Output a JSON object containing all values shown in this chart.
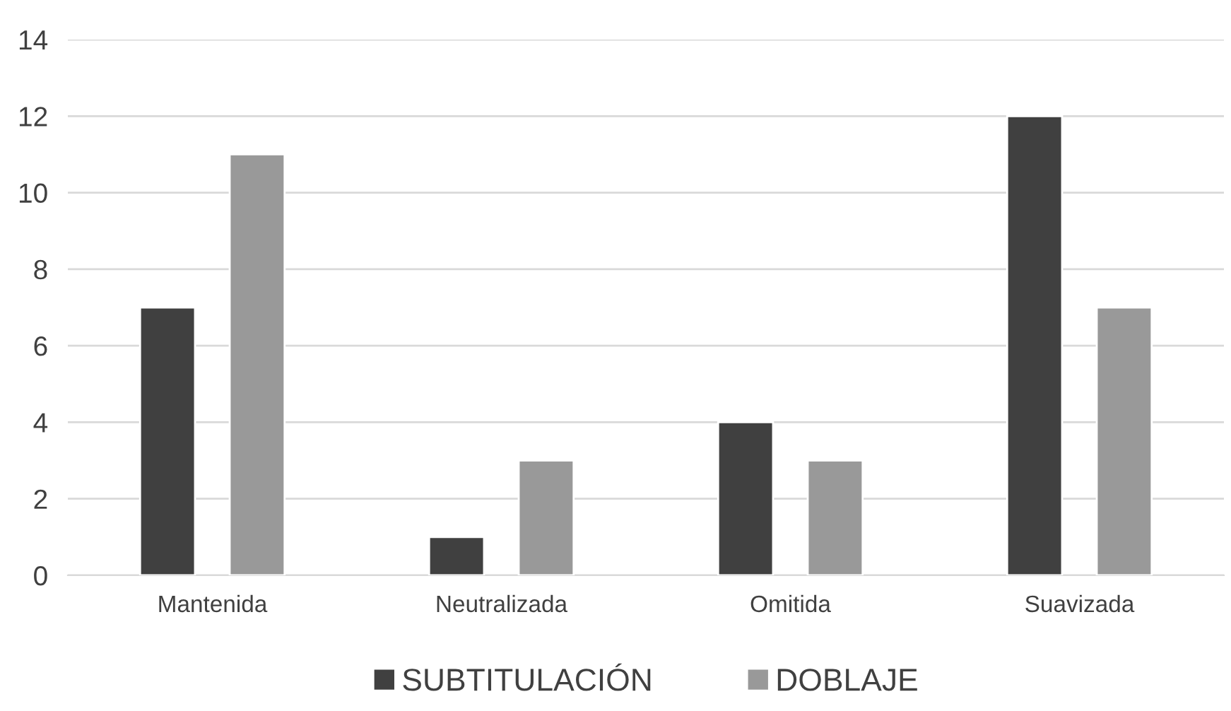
{
  "chart_data": {
    "type": "bar",
    "categories": [
      "Mantenida",
      "Neutralizada",
      "Omitida",
      "Suavizada"
    ],
    "series": [
      {
        "name": "SUBTITULACIÓN",
        "color": "#404040",
        "values": [
          7,
          1,
          4,
          12
        ]
      },
      {
        "name": "DOBLAJE",
        "color": "#999999",
        "values": [
          11,
          3,
          3,
          7
        ]
      }
    ],
    "ylim": [
      0,
      14
    ],
    "yticks": [
      0,
      2,
      4,
      6,
      8,
      10,
      12,
      14
    ],
    "grid": "y",
    "legend": "bottom"
  }
}
